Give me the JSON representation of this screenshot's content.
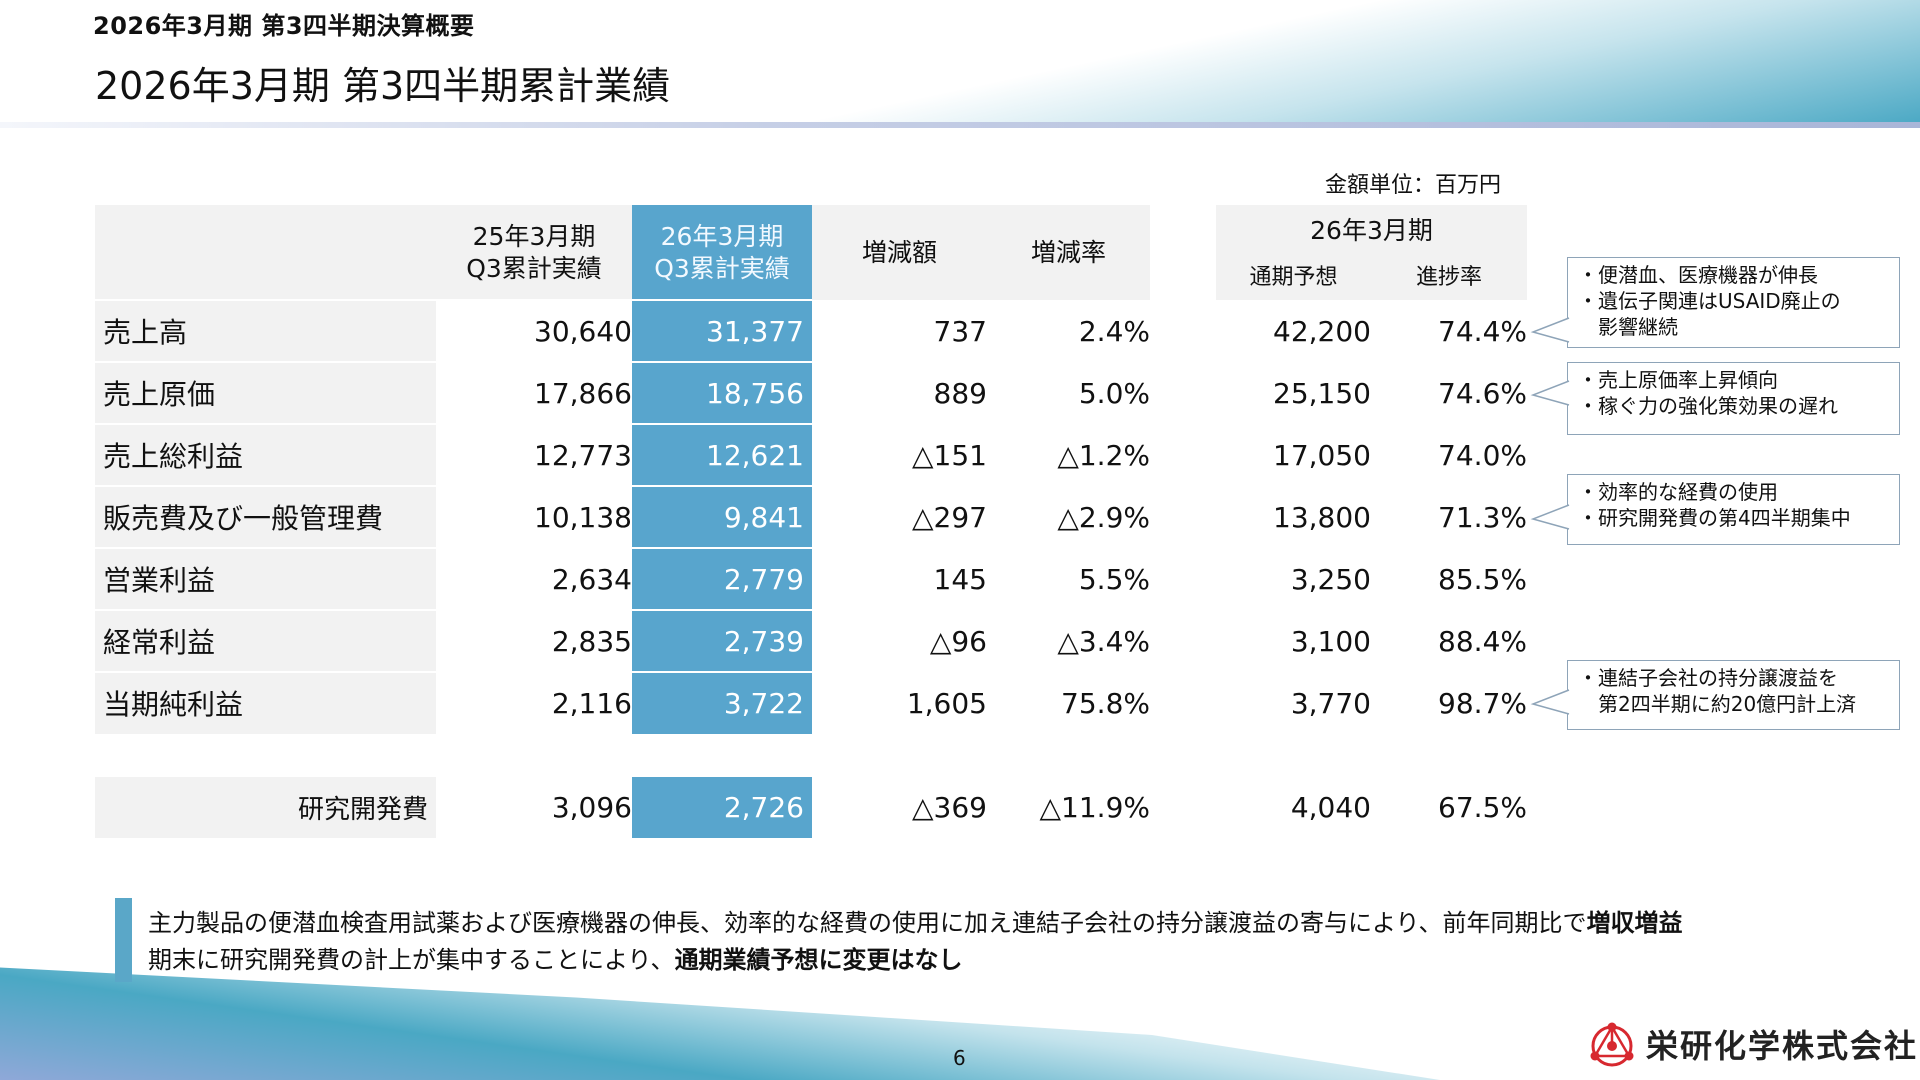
{
  "header": {
    "label": "2026年3月期 第3四半期決算概要",
    "title": "2026年3月期 第3四半期累計業績"
  },
  "unit_label": "金額単位：百万円",
  "table": {
    "columns": {
      "prev": [
        "25年3月期",
        "Q3累計実績"
      ],
      "curr": [
        "26年3月期",
        "Q3累計実績"
      ],
      "change_amount": "増減額",
      "change_rate": "増減率",
      "forecast_group": "26年3月期",
      "forecast": "通期予想",
      "progress": "進捗率"
    },
    "rows": [
      {
        "label": "売上高",
        "prev": "30,640",
        "curr": "31,377",
        "change": "737",
        "rate": "2.4%",
        "forecast": "42,200",
        "progress": "74.4%"
      },
      {
        "label": "売上原価",
        "prev": "17,866",
        "curr": "18,756",
        "change": "889",
        "rate": "5.0%",
        "forecast": "25,150",
        "progress": "74.6%"
      },
      {
        "label": "売上総利益",
        "prev": "12,773",
        "curr": "12,621",
        "change": "△151",
        "rate": "△1.2%",
        "forecast": "17,050",
        "progress": "74.0%"
      },
      {
        "label": "販売費及び一般管理費",
        "prev": "10,138",
        "curr": "9,841",
        "change": "△297",
        "rate": "△2.9%",
        "forecast": "13,800",
        "progress": "71.3%"
      },
      {
        "label": "営業利益",
        "prev": "2,634",
        "curr": "2,779",
        "change": "145",
        "rate": "5.5%",
        "forecast": "3,250",
        "progress": "85.5%"
      },
      {
        "label": "経常利益",
        "prev": "2,835",
        "curr": "2,739",
        "change": "△96",
        "rate": "△3.4%",
        "forecast": "3,100",
        "progress": "88.4%"
      },
      {
        "label": "当期純利益",
        "prev": "2,116",
        "curr": "3,722",
        "change": "1,605",
        "rate": "75.8%",
        "forecast": "3,770",
        "progress": "98.7%"
      }
    ],
    "rnd": {
      "label": "研究開発費",
      "prev": "3,096",
      "curr": "2,726",
      "change": "△369",
      "rate": "△11.9%",
      "forecast": "4,040",
      "progress": "67.5%"
    }
  },
  "callouts": [
    {
      "lines": [
        "・便潜血、医療機器が伸長",
        "・遺伝子関連はUSAID廃止の",
        "　影響継続"
      ]
    },
    {
      "lines": [
        "・売上原価率上昇傾向",
        "・稼ぐ力の強化策効果の遅れ"
      ]
    },
    {
      "lines": [
        "・効率的な経費の使用",
        "・研究開発費の第4四半期集中"
      ]
    },
    {
      "lines": [
        "・連結子会社の持分譲渡益を",
        "　第2四半期に約20億円計上済"
      ]
    }
  ],
  "summary": {
    "line1_text": "主力製品の便潜血検査用試薬および医療機器の伸長、効率的な経費の使用に加え連結子会社の持分譲渡益の寄与により、前年同期比で",
    "line1_bold": "増収増益",
    "line2_text": "期末に研究開発費の計上が集中することにより、",
    "line2_bold": "通期業績予想に変更はなし"
  },
  "footer": {
    "page_number": "6",
    "company": "栄研化学株式会社"
  },
  "colors": {
    "accent_blue": "#58a5cd",
    "header_gray": "#f2f2f2",
    "logo_red": "#d7282f"
  }
}
